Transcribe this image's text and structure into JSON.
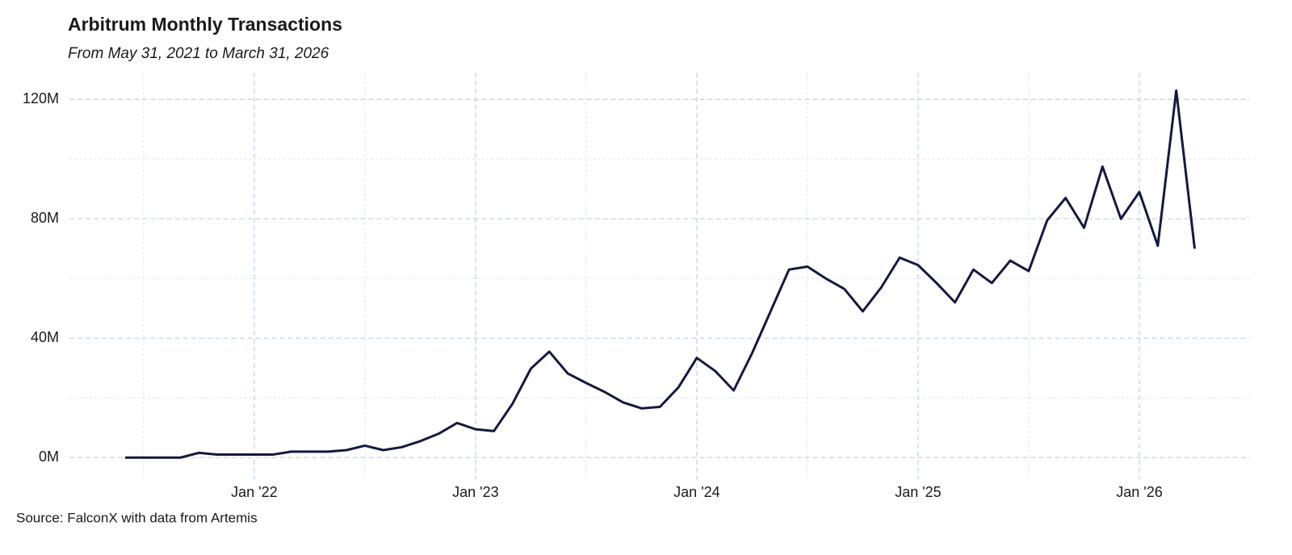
{
  "chart_data": {
    "type": "line",
    "title": "Arbitrum Monthly Transactions",
    "subtitle": "From May 31, 2021 to March 31, 2026",
    "source": "Source: FalconX with data from Artemis",
    "x": [
      "2021-05",
      "2021-06",
      "2021-07",
      "2021-08",
      "2021-09",
      "2021-10",
      "2021-11",
      "2021-12",
      "2022-01",
      "2022-02",
      "2022-03",
      "2022-04",
      "2022-05",
      "2022-06",
      "2022-07",
      "2022-08",
      "2022-09",
      "2022-10",
      "2022-11",
      "2022-12",
      "2023-01",
      "2023-02",
      "2023-03",
      "2023-04",
      "2023-05",
      "2023-06",
      "2023-07",
      "2023-08",
      "2023-09",
      "2023-10",
      "2023-11",
      "2023-12",
      "2024-01",
      "2024-02",
      "2024-03",
      "2024-04",
      "2024-05",
      "2024-06",
      "2024-07",
      "2024-08",
      "2024-09",
      "2024-10",
      "2024-11",
      "2024-12",
      "2025-01",
      "2025-02",
      "2025-03",
      "2025-04",
      "2025-05",
      "2025-06",
      "2025-07",
      "2025-08",
      "2025-09",
      "2025-10",
      "2025-11",
      "2025-12",
      "2026-01",
      "2026-02",
      "2026-03"
    ],
    "values": [
      0,
      0,
      0,
      0,
      1.6,
      1,
      1,
      1,
      1,
      2,
      2,
      2,
      2.5,
      4,
      2.5,
      3.5,
      5.5,
      8,
      11.6,
      9.5,
      8.9,
      18,
      29.8,
      35.5,
      28.2,
      25,
      22,
      18.5,
      16.5,
      17,
      23.5,
      33.4,
      29,
      22.5,
      35,
      49,
      63,
      64,
      60,
      56.5,
      49,
      57,
      67,
      64.5,
      58.5,
      52,
      63,
      58.5,
      66,
      62.5,
      79.5,
      87,
      77,
      97.5,
      80,
      89,
      71,
      123,
      70
    ],
    "color": "#141a3d",
    "xlim": [
      "2021-03",
      "2026-07"
    ],
    "xticks": [
      {
        "value": "2022-01",
        "label": "Jan '22"
      },
      {
        "value": "2023-01",
        "label": "Jan '23"
      },
      {
        "value": "2024-01",
        "label": "Jan '24"
      },
      {
        "value": "2025-01",
        "label": "Jan '25"
      },
      {
        "value": "2026-01",
        "label": "Jan '26"
      }
    ],
    "x_minor_ticks": [
      "2021-07",
      "2022-07",
      "2023-07",
      "2024-07",
      "2025-07"
    ],
    "ylim": [
      -7.5,
      129
    ],
    "yticks": [
      {
        "value": 0,
        "label": "0M"
      },
      {
        "value": 40,
        "label": "40M"
      },
      {
        "value": 80,
        "label": "80M"
      },
      {
        "value": 120,
        "label": "120M"
      }
    ],
    "y_minor_ticks": [
      20,
      60,
      100
    ],
    "grid": true
  }
}
